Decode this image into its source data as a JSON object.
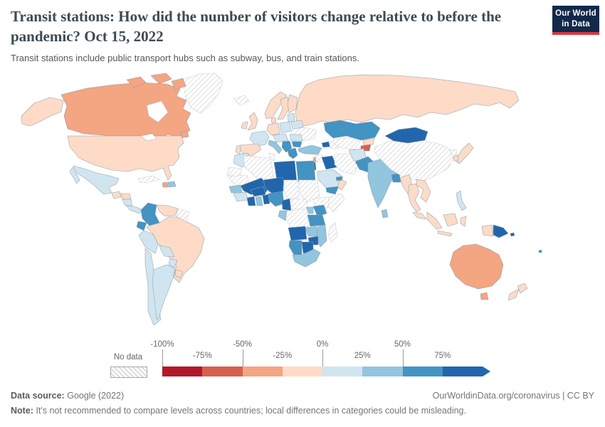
{
  "header": {
    "title": "Transit stations: How did the number of visitors change relative to before the pandemic? Oct 15, 2022",
    "subtitle": "Transit stations include public transport hubs such as subway, bus, and train stations.",
    "logo_line1": "Our World",
    "logo_line2": "in Data",
    "logo_bg": "#12294b",
    "logo_accent": "#d7383e"
  },
  "legend": {
    "no_data_label": "No data",
    "ticks_top": [
      "-100%",
      "-50%",
      "0%",
      "50%"
    ],
    "ticks_bottom": [
      "-75%",
      "-25%",
      "25%",
      "75%"
    ],
    "colors": [
      "#b2182b",
      "#d6604d",
      "#f4a582",
      "#fddbc7",
      "#d1e5f0",
      "#92c5de",
      "#4393c3",
      "#2166ac"
    ]
  },
  "footer": {
    "source_label": "Data source:",
    "source_value": "Google (2022)",
    "link_text": "OurWorldinData.org/coronavirus | CC BY",
    "note_label": "Note:",
    "note_text": "It's not recommended to compare levels across countries; local differences in categories could be misleading."
  },
  "chart_data": {
    "type": "heatmap",
    "subtype": "choropleth-world-map",
    "title": "Transit stations: How did the number of visitors change relative to before the pandemic?",
    "date": "Oct 15, 2022",
    "unit": "% change relative to pre-pandemic baseline",
    "scale": {
      "style": "diverging RdBu",
      "tick_labels": [
        "-100%",
        "-75%",
        "-50%",
        "-25%",
        "0%",
        "25%",
        "50%",
        "75%"
      ],
      "open_ended_high": true,
      "no_data_style": "diagonal-hatch"
    },
    "buckets": [
      "-100 to -75",
      "-75 to -50",
      "-50 to -25",
      "-25 to 0",
      "0 to 25",
      "25 to 50",
      "50 to 75",
      "75+"
    ],
    "values": {
      "Greenland": "no data",
      "Canada": "-50 to -25",
      "United States": "-25 to 0",
      "Mexico": "0 to 25",
      "Guatemala": "-25 to 0",
      "Honduras": "-25 to 0",
      "Nicaragua": "0 to 25",
      "Panama": "0 to 25",
      "Cuba": "no data",
      "Haiti": "-50 to -25",
      "Dominican Republic": "25 to 50",
      "Colombia": "50 to 75",
      "Venezuela": "-25 to 0",
      "Guyana": "no data",
      "Ecuador": "50 to 75",
      "Peru": "0 to 25",
      "Brazil": "-25 to 0",
      "Bolivia": "0 to 25",
      "Paraguay": "0 to 25",
      "Uruguay": "-25 to 0",
      "Chile": "0 to 25",
      "Argentina": "0 to 25",
      "Iceland": "no data",
      "Norway": "-25 to 0",
      "Sweden": "-25 to 0",
      "Finland": "-25 to 0",
      "United Kingdom": "-25 to 0",
      "Ireland": "-25 to 0",
      "Denmark": "-25 to 0",
      "Germany": "-25 to 0",
      "France": "0 to 25",
      "Spain": "-25 to 0",
      "Portugal": "-25 to 0",
      "Poland": "0 to 25",
      "Lithuania": "0 to 25",
      "Belarus": "0 to 25",
      "Ukraine": "no data",
      "Czechia": "0 to 25",
      "Italy": "25 to 50",
      "Serbia": "50 to 75",
      "Romania": "0 to 25",
      "Bulgaria": "50 to 75",
      "Greece": "50 to 75",
      "Russia": "-25 to 0",
      "Turkey": "25 to 50",
      "Georgia": "75+",
      "Azerbaijan": "no data",
      "Syria": "no data",
      "Lebanon": "-50 to -25",
      "Israel": "75+",
      "Iraq": "75+",
      "Iran": "no data",
      "Saudi Arabia": "0 to 25",
      "Yemen": "50 to 75",
      "Oman": "-25 to 0",
      "United Arab Emirates": "50 to 75",
      "Morocco": "0 to 25",
      "Western Sahara": "no data",
      "Algeria": "no data",
      "Tunisia": "no data",
      "Libya": "75+",
      "Egypt": "50 to 75",
      "Mauritania": "no data",
      "Mali": "75+",
      "Senegal": "25 to 50",
      "Guinea": "0 to 25",
      "Cote d'Ivoire": "75+",
      "Ghana": "25 to 50",
      "Benin": "75+",
      "Burkina Faso": "75+",
      "Niger": "75+",
      "Chad": "no data",
      "Sudan": "no data",
      "Nigeria": "50 to 75",
      "Cameroon": "75+",
      "Central African Republic": "no data",
      "Ethiopia": "no data",
      "Somalia": "no data",
      "Kenya": "50 to 75",
      "Uganda": "25 to 50",
      "DR Congo": "no data",
      "Gabon": "25 to 50",
      "Tanzania": "50 to 75",
      "Angola": "75+",
      "Zambia": "25 to 50",
      "Mozambique": "25 to 50",
      "Zimbabwe": "75+",
      "Namibia": "50 to 75",
      "Botswana": "75+",
      "South Africa": "25 to 50",
      "Madagascar": "no data",
      "Kazakhstan": "50 to 75",
      "Uzbekistan": "no data",
      "Kyrgyzstan": "-25 to 0",
      "Tajikistan": "-75 to -50",
      "Afghanistan": "0 to 25",
      "Pakistan": "50 to 75",
      "India": "25 to 50",
      "Bangladesh": "50 to 75",
      "Sri Lanka": "25 to 50",
      "China": "no data",
      "Mongolia": "75+",
      "Myanmar": "-25 to 0",
      "Thailand": "-25 to 0",
      "Vietnam": "-25 to 0",
      "Malaysia": "-25 to 0",
      "Indonesia": "-25 to 0",
      "Philippines": "0 to 25",
      "Japan": "-25 to 0",
      "South Korea": "-25 to 0",
      "North Korea": "no data",
      "Papua New Guinea": "75+",
      "Solomon Islands": "75+",
      "Fiji": "50 to 75",
      "Australia": "-50 to -25",
      "New Zealand": "-25 to 0"
    }
  }
}
